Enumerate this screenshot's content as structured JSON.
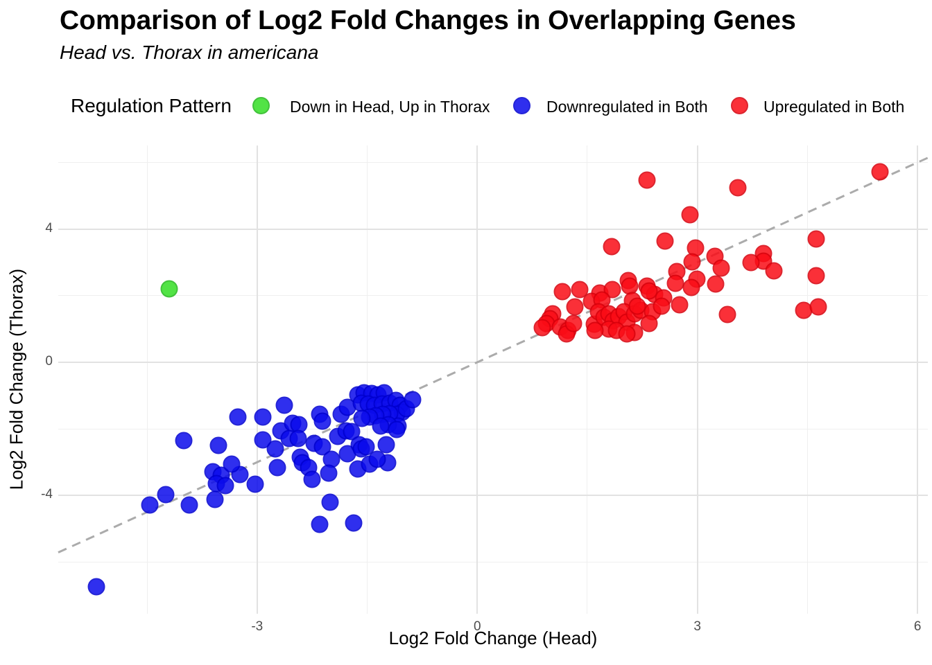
{
  "header": {
    "title": "Comparison of Log2 Fold Changes in Overlapping Genes",
    "subtitle": "Head vs. Thorax in americana"
  },
  "legend": {
    "title": "Regulation Pattern",
    "position": "top"
  },
  "colors": {
    "green": "#35df25",
    "blue": "#0b0bec",
    "red": "#fa0c16",
    "reference_line": "#ababab",
    "tick_label": "#4d4d4d",
    "grid_major": "#e2e2e2",
    "grid_minor": "#efefef"
  },
  "chart_data": {
    "type": "scatter",
    "title": "Comparison of Log2 Fold Changes in Overlapping Genes",
    "subtitle": "Head vs. Thorax in americana",
    "xlabel": "Log2 Fold Change (Head)",
    "ylabel": "Log2 Fold Change (Thorax)",
    "xlim": [
      -5.71,
      6.14
    ],
    "ylim": [
      -7.55,
      6.51
    ],
    "x_ticks": [
      -3,
      0,
      3,
      6
    ],
    "y_ticks": [
      -4,
      0,
      4
    ],
    "grid": {
      "x_major": [
        -3,
        0,
        3,
        6
      ],
      "x_minor": [
        -4.5,
        -1.5,
        1.5,
        4.5
      ],
      "y_major": [
        -4,
        0,
        4
      ],
      "y_minor": [
        -6,
        -2,
        2,
        6
      ]
    },
    "legend_title": "Regulation Pattern",
    "legend_position": "top",
    "reference_line": {
      "style": "dashed",
      "equation": "y = x",
      "color": "#ababab",
      "x1": -5.71,
      "y1": -5.71,
      "x2": 6.14,
      "y2": 6.14
    },
    "series": [
      {
        "name": "Down in Head, Up in Thorax",
        "color": "#35df25",
        "stroke": "#22b81a",
        "points": [
          [
            -4.2,
            2.2
          ]
        ]
      },
      {
        "name": "Downregulated in Both",
        "color": "#0b0bec",
        "stroke": "#0000cf",
        "points": [
          [
            -5.19,
            -6.73
          ],
          [
            -4.46,
            -4.29
          ],
          [
            -4.25,
            -3.97
          ],
          [
            -4.0,
            -2.35
          ],
          [
            -3.92,
            -4.29
          ],
          [
            -3.57,
            -4.11
          ],
          [
            -3.6,
            -3.28
          ],
          [
            -3.49,
            -3.4
          ],
          [
            -3.56,
            -3.65
          ],
          [
            -3.43,
            -3.7
          ],
          [
            -3.23,
            -3.37
          ],
          [
            -3.03,
            -3.66
          ],
          [
            -3.35,
            -3.06
          ],
          [
            -3.53,
            -2.49
          ],
          [
            -3.26,
            -1.64
          ],
          [
            -2.92,
            -1.64
          ],
          [
            -2.92,
            -2.33
          ],
          [
            -2.63,
            -1.29
          ],
          [
            -2.68,
            -2.05
          ],
          [
            -2.75,
            -2.6
          ],
          [
            -2.72,
            -3.16
          ],
          [
            -2.52,
            -1.84
          ],
          [
            -2.43,
            -1.88
          ],
          [
            -2.56,
            -2.29
          ],
          [
            -2.44,
            -2.29
          ],
          [
            -2.41,
            -2.85
          ],
          [
            -2.38,
            -3.02
          ],
          [
            -2.3,
            -3.16
          ],
          [
            -2.25,
            -3.51
          ],
          [
            -2.15,
            -1.57
          ],
          [
            -2.11,
            -1.77
          ],
          [
            -2.22,
            -2.43
          ],
          [
            -2.11,
            -2.54
          ],
          [
            -1.99,
            -2.92
          ],
          [
            -2.02,
            -3.33
          ],
          [
            -2.01,
            -4.2
          ],
          [
            -2.15,
            -4.86
          ],
          [
            -1.68,
            -4.82
          ],
          [
            -1.9,
            -2.22
          ],
          [
            -1.85,
            -1.57
          ],
          [
            -1.77,
            -1.36
          ],
          [
            -1.79,
            -2.05
          ],
          [
            -1.71,
            -2.08
          ],
          [
            -1.77,
            -2.74
          ],
          [
            -1.61,
            -2.47
          ],
          [
            -1.58,
            -2.6
          ],
          [
            -1.63,
            -3.2
          ],
          [
            -1.47,
            -3.06
          ],
          [
            -1.24,
            -2.47
          ],
          [
            -1.22,
            -3.02
          ],
          [
            -1.51,
            -2.54
          ],
          [
            -1.36,
            -2.92
          ],
          [
            -1.63,
            -0.98
          ],
          [
            -1.54,
            -0.91
          ],
          [
            -1.44,
            -0.94
          ],
          [
            -1.35,
            -0.98
          ],
          [
            -1.27,
            -0.91
          ],
          [
            -1.58,
            -1.22
          ],
          [
            -1.49,
            -1.25
          ],
          [
            -1.4,
            -1.29
          ],
          [
            -1.3,
            -1.25
          ],
          [
            -1.19,
            -1.22
          ],
          [
            -1.11,
            -1.15
          ],
          [
            -1.05,
            -1.29
          ],
          [
            -1.02,
            -1.5
          ],
          [
            -1.1,
            -1.57
          ],
          [
            -1.19,
            -1.53
          ],
          [
            -1.29,
            -1.57
          ],
          [
            -1.38,
            -1.6
          ],
          [
            -1.47,
            -1.64
          ],
          [
            -1.57,
            -1.69
          ],
          [
            -1.08,
            -1.91
          ],
          [
            -1.21,
            -1.88
          ],
          [
            -1.32,
            -1.91
          ],
          [
            -0.97,
            -1.39
          ],
          [
            -0.88,
            -1.12
          ],
          [
            -1.1,
            -2.02
          ]
        ]
      },
      {
        "name": "Upregulated in Both",
        "color": "#fa0c16",
        "stroke": "#d7000b",
        "points": [
          [
            2.31,
            5.48
          ],
          [
            3.55,
            5.24
          ],
          [
            5.49,
            5.73
          ],
          [
            2.9,
            4.43
          ],
          [
            1.83,
            3.47
          ],
          [
            2.56,
            3.65
          ],
          [
            2.97,
            3.44
          ],
          [
            3.24,
            3.18
          ],
          [
            3.32,
            2.83
          ],
          [
            2.93,
            3.01
          ],
          [
            2.72,
            2.72
          ],
          [
            2.7,
            2.38
          ],
          [
            2.99,
            2.49
          ],
          [
            2.92,
            2.25
          ],
          [
            3.25,
            2.36
          ],
          [
            2.06,
            2.45
          ],
          [
            4.62,
            3.7
          ],
          [
            3.9,
            3.26
          ],
          [
            3.9,
            3.04
          ],
          [
            3.73,
            2.99
          ],
          [
            4.04,
            2.75
          ],
          [
            4.62,
            2.59
          ],
          [
            4.45,
            1.57
          ],
          [
            4.65,
            1.67
          ],
          [
            3.41,
            1.43
          ],
          [
            1.16,
            2.12
          ],
          [
            1.4,
            2.18
          ],
          [
            1.67,
            2.07
          ],
          [
            1.84,
            2.18
          ],
          [
            1.56,
            1.83
          ],
          [
            1.7,
            1.88
          ],
          [
            2.08,
            2.28
          ],
          [
            2.11,
            1.86
          ],
          [
            2.31,
            2.28
          ],
          [
            2.42,
            2.04
          ],
          [
            1.33,
            1.66
          ],
          [
            1.03,
            1.45
          ],
          [
            0.99,
            1.31
          ],
          [
            0.94,
            1.17
          ],
          [
            0.89,
            1.03
          ],
          [
            1.13,
            1.07
          ],
          [
            1.24,
            0.96
          ],
          [
            1.22,
            0.86
          ],
          [
            1.31,
            1.17
          ],
          [
            1.59,
            1.14
          ],
          [
            1.65,
            1.52
          ],
          [
            1.73,
            1.35
          ],
          [
            1.79,
            1.45
          ],
          [
            1.85,
            1.24
          ],
          [
            1.93,
            1.38
          ],
          [
            2.0,
            1.52
          ],
          [
            2.04,
            1.21
          ],
          [
            1.79,
            1.0
          ],
          [
            1.9,
            0.96
          ],
          [
            1.6,
            0.96
          ],
          [
            2.14,
            1.45
          ],
          [
            2.23,
            1.55
          ],
          [
            2.14,
            0.9
          ],
          [
            2.04,
            0.86
          ],
          [
            2.39,
            1.52
          ],
          [
            2.34,
            1.17
          ],
          [
            2.54,
            1.93
          ],
          [
            2.51,
            1.69
          ],
          [
            2.76,
            1.73
          ],
          [
            2.18,
            1.69
          ],
          [
            2.34,
            2.14
          ]
        ]
      }
    ]
  }
}
